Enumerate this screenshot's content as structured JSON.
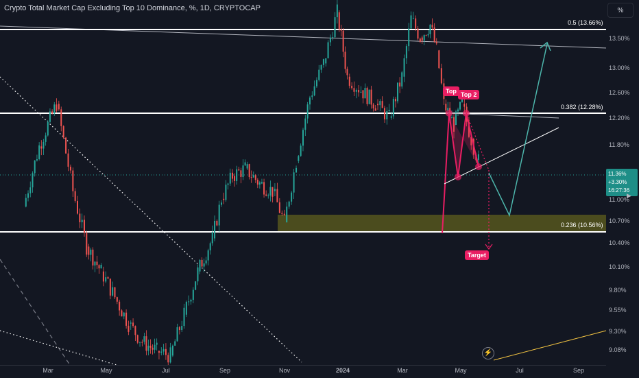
{
  "header": {
    "title": "Crypto Total Market Cap Excluding Top 10 Dominance, %, 1D, CRYPTOCAP",
    "scale_label": "%"
  },
  "price_tag": {
    "value": "11.36%",
    "change": "+3.30%",
    "countdown": "16:27:36"
  },
  "fib_levels": [
    {
      "label": "0.5 (13.66%)",
      "value": 13.66
    },
    {
      "label": "0.382 (12.28%)",
      "value": 12.28
    },
    {
      "label": "0.236 (10.56%)",
      "value": 10.56
    }
  ],
  "annotations": {
    "top1": "Top",
    "top2": "Top 2",
    "target": "Target"
  },
  "colors": {
    "background": "#131722",
    "candle_up": "#26a69a",
    "candle_down": "#ef5350",
    "pattern": "#e91e63",
    "arrow": "#4db6ac",
    "zone": "#5a5a1e",
    "price_tag": "#1e8e87",
    "trendline_yellow": "#f5c542"
  },
  "chart_data": {
    "type": "candlestick",
    "title": "Crypto Total Market Cap Excluding Top 10 Dominance, %, 1D, CRYPTOCAP",
    "y_axis_ticks": [
      "13.50%",
      "13.00%",
      "12.60%",
      "12.20%",
      "11.80%",
      "11.00%",
      "10.70%",
      "10.40%",
      "10.10%",
      "9.80%",
      "9.55%",
      "9.30%",
      "9.08%"
    ],
    "x_axis_ticks": [
      "Mar",
      "May",
      "Jul",
      "Sep",
      "Nov",
      "2024",
      "Mar",
      "May",
      "Jul",
      "Sep"
    ],
    "ylim": [
      8.95,
      13.8
    ],
    "scale": "log",
    "grid": false,
    "last_value": 11.36,
    "series": [
      {
        "x": [
          "2023-01-15",
          "2023-02-01",
          "2023-02-20",
          "2023-03-10",
          "2023-03-25",
          "2023-04-10",
          "2023-04-25",
          "2023-05-10",
          "2023-05-25",
          "2023-06-10",
          "2023-06-25",
          "2023-07-10",
          "2023-07-25",
          "2023-08-10",
          "2023-08-20",
          "2023-09-01",
          "2023-09-15",
          "2023-10-01",
          "2023-10-15",
          "2023-10-28",
          "2023-11-10",
          "2023-11-25",
          "2023-12-10",
          "2023-12-25",
          "2024-01-05",
          "2024-01-20",
          "2024-02-05",
          "2024-02-20",
          "2024-03-05",
          "2024-03-15",
          "2024-03-25",
          "2024-04-05",
          "2024-04-12",
          "2024-04-20",
          "2024-05-01",
          "2024-05-10",
          "2024-05-20",
          "2024-05-28"
        ],
        "values": [
          10.8,
          11.6,
          12.2,
          11.0,
          10.3,
          10.0,
          9.7,
          9.4,
          9.2,
          9.1,
          9.05,
          9.5,
          10.0,
          10.4,
          10.9,
          11.2,
          11.3,
          11.1,
          11.0,
          10.6,
          11.4,
          12.3,
          12.8,
          13.6,
          12.6,
          12.4,
          12.2,
          12.0,
          12.6,
          13.5,
          13.2,
          13.4,
          13.0,
          12.2,
          11.9,
          12.2,
          11.7,
          11.4
        ]
      }
    ],
    "horizontal_levels": [
      13.66,
      12.28,
      10.56
    ],
    "support_zone": [
      10.56,
      10.78
    ],
    "double_top_peaks": [
      12.28,
      12.28
    ],
    "target_level": 10.4,
    "projection_path": [
      11.36,
      10.78,
      13.5
    ]
  }
}
